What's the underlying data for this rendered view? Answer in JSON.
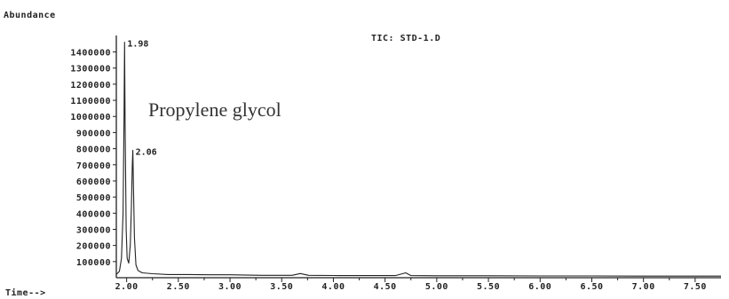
{
  "chart_data": {
    "type": "line",
    "ylabel": "Abundance",
    "xlabel": "Time-->",
    "trace_label": "TIC: STD-1.D",
    "annotation": "Propylene glycol",
    "xlim": [
      1.9,
      7.75
    ],
    "ylim": [
      0,
      1480000
    ],
    "y_ticks": [
      "100000",
      "200000",
      "300000",
      "400000",
      "500000",
      "600000",
      "700000",
      "800000",
      "900000",
      "1000000",
      "1100000",
      "1200000",
      "1300000",
      "1400000"
    ],
    "x_ticks": [
      "2.00",
      "2.50",
      "3.00",
      "3.50",
      "4.00",
      "4.50",
      "5.00",
      "5.50",
      "6.00",
      "6.50",
      "7.00",
      "7.50"
    ],
    "peaks": [
      {
        "label": "1.98",
        "x": 1.98,
        "y": 1460000
      },
      {
        "label": "2.06",
        "x": 2.06,
        "y": 790000
      }
    ],
    "series": [
      {
        "x": [
          1.9,
          1.93,
          1.95,
          1.965,
          1.975,
          1.98,
          1.985,
          1.995,
          2.005,
          2.02,
          2.035,
          2.045,
          2.055,
          2.06,
          2.065,
          2.075,
          2.09,
          2.11,
          2.15,
          2.25,
          2.4,
          2.6,
          2.8,
          3.0,
          3.3,
          3.6,
          3.68,
          3.76,
          4.0,
          4.3,
          4.6,
          4.7,
          4.75,
          5.0,
          5.5,
          6.0,
          6.5,
          7.0,
          7.5,
          7.75
        ],
        "y": [
          20000,
          40000,
          120000,
          400000,
          1000000,
          1460000,
          950000,
          300000,
          120000,
          90000,
          200000,
          420000,
          700000,
          790000,
          600000,
          250000,
          80000,
          45000,
          30000,
          25000,
          20000,
          20000,
          18000,
          18000,
          15000,
          15000,
          26000,
          15000,
          14000,
          13000,
          13000,
          30000,
          13000,
          12000,
          12000,
          11000,
          11000,
          10000,
          10000,
          10000
        ]
      }
    ]
  }
}
